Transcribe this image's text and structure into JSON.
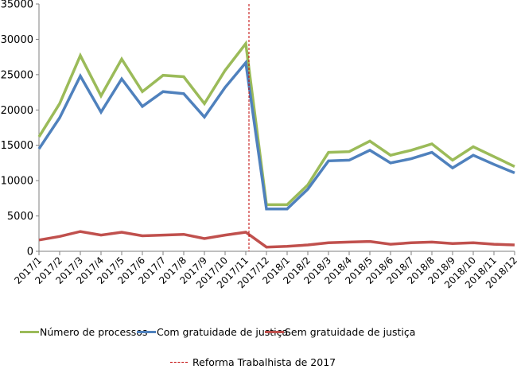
{
  "chart_data": {
    "type": "line",
    "title": "",
    "xlabel": "",
    "ylabel": "",
    "ylim": [
      0,
      35000
    ],
    "yticks": [
      0,
      5000,
      10000,
      15000,
      20000,
      25000,
      30000,
      35000
    ],
    "grid": false,
    "legend_position": "bottom",
    "categories": [
      "2017/1",
      "2017/2",
      "2017/3",
      "2017/4",
      "2017/5",
      "2017/6",
      "2017/7",
      "2017/8",
      "2017/9",
      "2017/10",
      "2017/11",
      "2017/12",
      "2018/1",
      "2018/2",
      "2018/3",
      "2018/4",
      "2018/5",
      "2018/6",
      "2018/7",
      "2018/8",
      "2018/9",
      "2018/10",
      "2018/11",
      "2018/12"
    ],
    "series": [
      {
        "name": "Número de processos",
        "color": "#9bbb59",
        "values": [
          16200,
          20900,
          27700,
          22000,
          27200,
          22600,
          24900,
          24700,
          20900,
          25600,
          29400,
          6600,
          6600,
          9400,
          14000,
          14100,
          15600,
          13600,
          14300,
          15200,
          12900,
          14800,
          13400,
          12000
        ]
      },
      {
        "name": "Com gratuidade de justiça",
        "color": "#4f81bd",
        "values": [
          14500,
          18900,
          24800,
          19700,
          24400,
          20500,
          22600,
          22300,
          19000,
          23200,
          26700,
          6000,
          6000,
          8800,
          12800,
          12900,
          14300,
          12500,
          13100,
          14000,
          11800,
          13600,
          12300,
          11100
        ]
      },
      {
        "name": "Sem gratuidade de justiça",
        "color": "#c0504d",
        "values": [
          1600,
          2100,
          2800,
          2300,
          2700,
          2200,
          2300,
          2400,
          1800,
          2300,
          2700,
          600,
          700,
          900,
          1200,
          1300,
          1400,
          1000,
          1200,
          1300,
          1100,
          1200,
          1000,
          900
        ]
      }
    ],
    "annotations": [
      {
        "type": "vertical-dashed-line",
        "label": "Reforma Trabalhista de 2017",
        "position_between": [
          "2017/11",
          "2017/12"
        ],
        "color": "#c00000"
      }
    ]
  },
  "legend": {
    "items": [
      {
        "label": "Número de processos",
        "color": "#9bbb59"
      },
      {
        "label": "Com gratuidade de justiça",
        "color": "#4f81bd"
      },
      {
        "label": "Sem gratuidade de justiça",
        "color": "#c0504d"
      }
    ],
    "annotation_label": "Reforma Trabalhista de 2017"
  }
}
